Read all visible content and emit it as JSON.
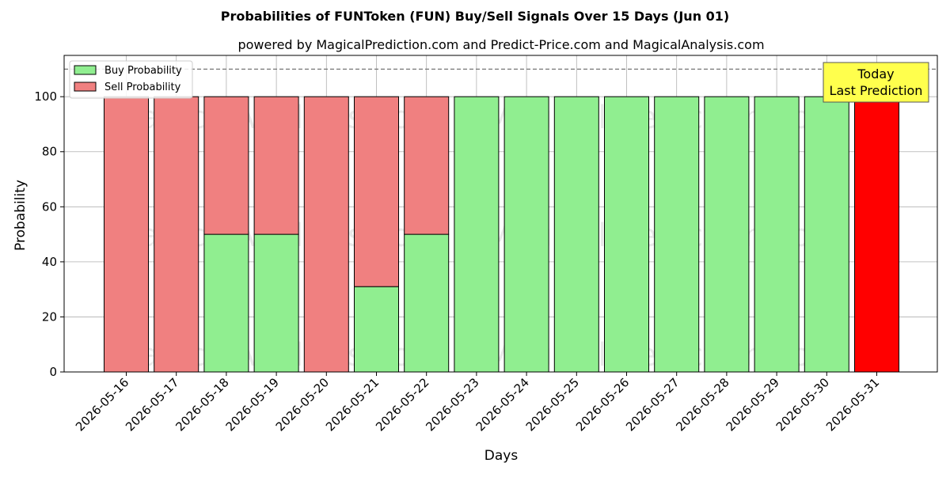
{
  "chart_data": {
    "type": "bar",
    "stacked": true,
    "title": "Probabilities of FUNToken (FUN) Buy/Sell Signals Over 15 Days (Jun 01)",
    "subtitle": "powered by MagicalPrediction.com and Predict-Price.com and MagicalAnalysis.com",
    "xlabel": "Days",
    "ylabel": "Probability",
    "ylim": [
      0,
      115
    ],
    "yticks": [
      0,
      20,
      40,
      60,
      80,
      100
    ],
    "grid": true,
    "legend_position": "top-left",
    "reference_line": {
      "y": 110,
      "style": "dashed"
    },
    "categories": [
      "2026-05-16",
      "2026-05-17",
      "2026-05-18",
      "2026-05-19",
      "2026-05-20",
      "2026-05-21",
      "2026-05-22",
      "2026-05-23",
      "2026-05-24",
      "2026-05-25",
      "2026-05-26",
      "2026-05-27",
      "2026-05-28",
      "2026-05-29",
      "2026-05-30",
      "2026-05-31"
    ],
    "series": [
      {
        "name": "Buy Probability",
        "color": "#90ee90",
        "values": [
          0,
          0,
          50,
          50,
          0,
          31,
          50,
          100,
          100,
          100,
          100,
          100,
          100,
          100,
          100,
          0
        ]
      },
      {
        "name": "Sell Probability",
        "color": "#f08080",
        "values": [
          100,
          100,
          50,
          50,
          100,
          69,
          50,
          0,
          0,
          0,
          0,
          0,
          0,
          0,
          0,
          100
        ]
      }
    ],
    "highlight": {
      "category": "2026-05-31",
      "color": "#ff0000"
    },
    "annotation": {
      "lines": [
        "Today",
        "Last Prediction"
      ],
      "background": "#ffff4d"
    },
    "watermarks": [
      "MagicalAnalysis.com",
      "MagicalPrediction.com"
    ]
  }
}
